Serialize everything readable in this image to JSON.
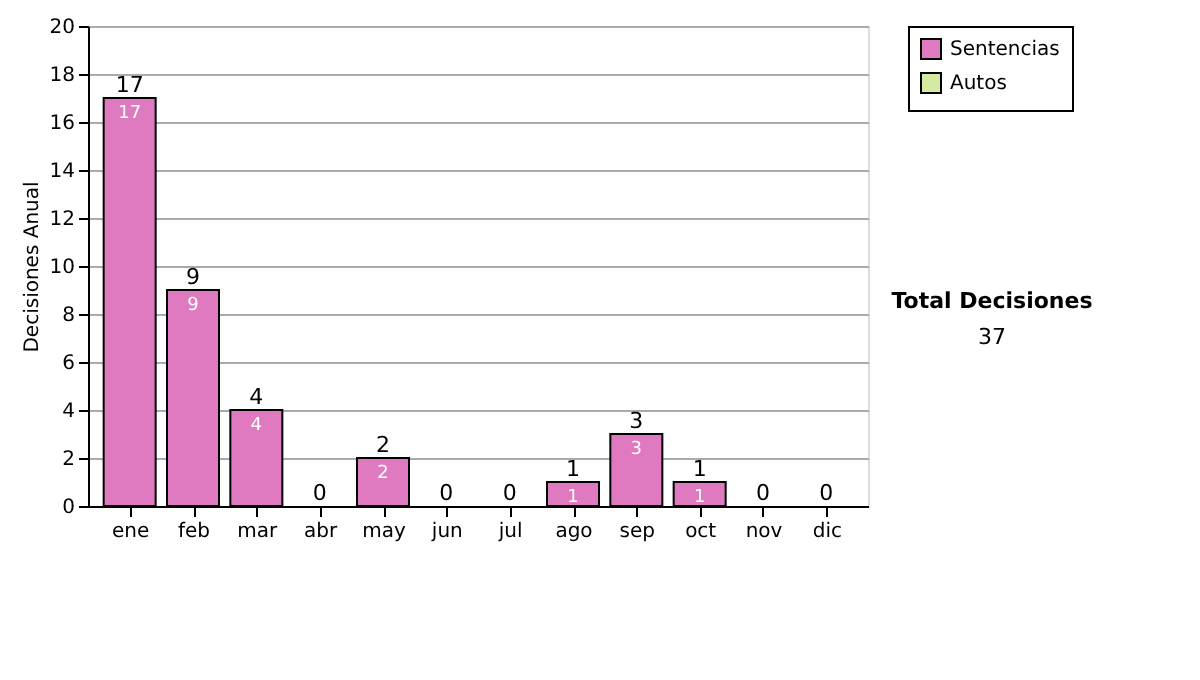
{
  "chart_data": {
    "type": "bar",
    "stacked": true,
    "ylabel": "Decisiones Anual",
    "categories": [
      "ene",
      "feb",
      "mar",
      "abr",
      "may",
      "jun",
      "jul",
      "ago",
      "sep",
      "oct",
      "nov",
      "dic"
    ],
    "series": [
      {
        "name": "Sentencias",
        "color": "#e07ac0",
        "values": [
          17,
          9,
          4,
          0,
          2,
          0,
          0,
          1,
          3,
          1,
          0,
          0
        ],
        "value_labels": [
          "17",
          "9",
          "4",
          null,
          "2",
          null,
          null,
          "1",
          "3",
          "1",
          null,
          null
        ]
      },
      {
        "name": "Autos",
        "color": "#d4eaa0",
        "values": [
          0,
          0,
          0,
          0,
          0,
          0,
          0,
          0,
          0,
          0,
          0,
          0
        ]
      }
    ],
    "totals": [
      "17",
      "9",
      "4",
      "0",
      "2",
      "0",
      "0",
      "1",
      "3",
      "1",
      "0",
      "0"
    ],
    "ylim": [
      0,
      20
    ],
    "yticks": [
      0,
      2,
      4,
      6,
      8,
      10,
      12,
      14,
      16,
      18,
      20
    ],
    "grid": "y",
    "legend": "right",
    "annotations": [
      "Total Decisiones",
      "37"
    ]
  }
}
